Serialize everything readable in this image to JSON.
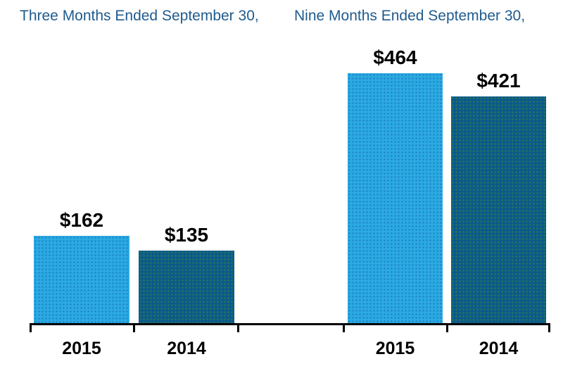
{
  "titles": {
    "left": "Three Months Ended September 30,",
    "right": "Nine Months Ended September 30,"
  },
  "colors": {
    "title_text": "#1F5B8E",
    "axis": "#000000",
    "label_text": "#000000",
    "bar_light": "#2BAAE2",
    "bar_light_dot": "#1C7CC2",
    "bar_dark": "#0C5A8A",
    "bar_dark_dot": "#2F7F4E"
  },
  "chart_data": {
    "type": "bar",
    "title": "",
    "xlabel": "",
    "ylabel": "",
    "legend": "none",
    "gridlines": false,
    "y_axis_visible": false,
    "x_axis_baseline": true,
    "ylim": [
      0,
      480
    ],
    "groups": [
      {
        "title": "Three Months Ended September 30,",
        "bars": [
          {
            "category": "2015",
            "value": 162,
            "label": "$162",
            "color": "light"
          },
          {
            "category": "2014",
            "value": 135,
            "label": "$135",
            "color": "dark"
          }
        ]
      },
      {
        "title": "Nine Months Ended September 30,",
        "bars": [
          {
            "category": "2015",
            "value": 464,
            "label": "$464",
            "color": "light"
          },
          {
            "category": "2014",
            "value": 421,
            "label": "$421",
            "color": "dark"
          }
        ]
      }
    ]
  }
}
